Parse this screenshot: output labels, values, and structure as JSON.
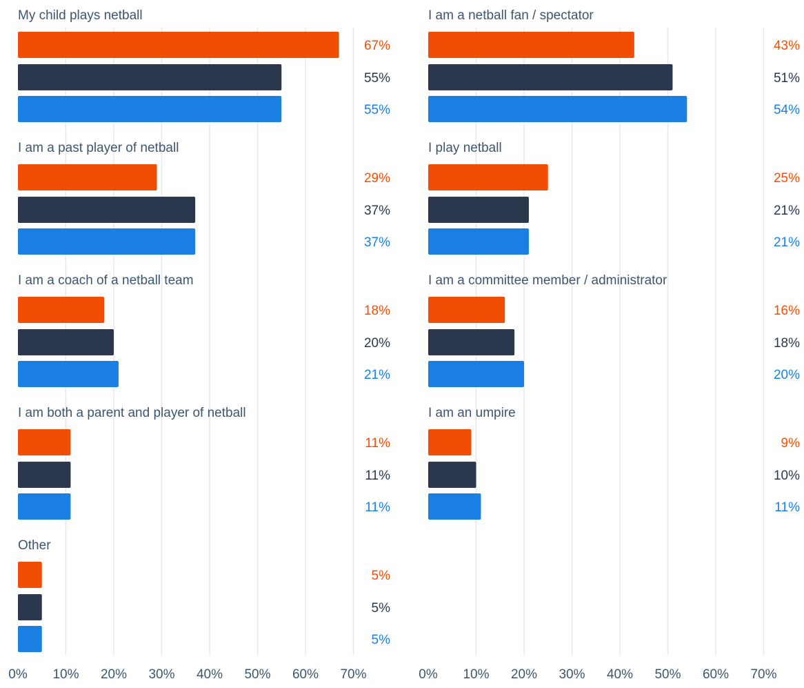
{
  "colors": {
    "series_orange": "#F04E04",
    "series_navy": "#2B374C",
    "series_blue": "#1A7FE3",
    "label_text": "#3D566E",
    "grid": "#E6E8EC",
    "navy_value_text": "#2B374C"
  },
  "chart_data": [
    {
      "type": "bar",
      "orientation": "horizontal",
      "panel": "left",
      "groups": [
        {
          "label": "My child plays netball",
          "values": [
            67,
            55,
            55
          ],
          "value_labels": [
            "67%",
            "55%",
            "55%"
          ]
        },
        {
          "label": "I am a past player of netball",
          "values": [
            29,
            37,
            37
          ],
          "value_labels": [
            "29%",
            "37%",
            "37%"
          ]
        },
        {
          "label": "I am a coach of a netball team",
          "values": [
            18,
            20,
            21
          ],
          "value_labels": [
            "18%",
            "20%",
            "21%"
          ]
        },
        {
          "label": "I am both a parent and player of netball",
          "values": [
            11,
            11,
            11
          ],
          "value_labels": [
            "11%",
            "11%",
            "11%"
          ]
        },
        {
          "label": "Other",
          "values": [
            5,
            5,
            5
          ],
          "value_labels": [
            "5%",
            "5%",
            "5%"
          ]
        }
      ],
      "xlim": [
        0,
        70
      ],
      "xticks": [
        "0%",
        "10%",
        "20%",
        "30%",
        "40%",
        "50%",
        "60%",
        "70%"
      ],
      "grid": true
    },
    {
      "type": "bar",
      "orientation": "horizontal",
      "panel": "right",
      "groups": [
        {
          "label": "I am a netball fan / spectator",
          "values": [
            43,
            51,
            54
          ],
          "value_labels": [
            "43%",
            "51%",
            "54%"
          ]
        },
        {
          "label": "I play netball",
          "values": [
            25,
            21,
            21
          ],
          "value_labels": [
            "25%",
            "21%",
            "21%"
          ]
        },
        {
          "label": "I am a committee member / administrator",
          "values": [
            16,
            18,
            20
          ],
          "value_labels": [
            "16%",
            "18%",
            "20%"
          ]
        },
        {
          "label": "I am an umpire",
          "values": [
            9,
            10,
            11
          ],
          "value_labels": [
            "9%",
            "10%",
            "11%"
          ]
        }
      ],
      "xlim": [
        0,
        70
      ],
      "xticks": [
        "0%",
        "10%",
        "20%",
        "30%",
        "40%",
        "50%",
        "60%",
        "70%"
      ],
      "grid": true
    }
  ]
}
